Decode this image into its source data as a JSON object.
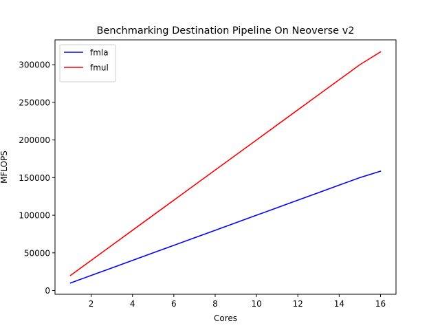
{
  "chart_data": {
    "type": "line",
    "title": "Benchmarking Destination Pipeline On Neoverse v2",
    "xlabel": "Cores",
    "ylabel": "MFLOPS",
    "xlim": [
      0.25,
      16.75
    ],
    "ylim": [
      -5000,
      333000
    ],
    "x_ticks": [
      2,
      4,
      6,
      8,
      10,
      12,
      14,
      16
    ],
    "x_tick_labels": [
      "2",
      "4",
      "6",
      "8",
      "10",
      "12",
      "14",
      "16"
    ],
    "y_ticks": [
      0,
      50000,
      100000,
      150000,
      200000,
      250000,
      300000
    ],
    "y_tick_labels": [
      "0",
      "50000",
      "100000",
      "150000",
      "200000",
      "250000",
      "300000"
    ],
    "grid": false,
    "legend_position": "top-left",
    "x": [
      1,
      2,
      3,
      4,
      5,
      6,
      7,
      8,
      9,
      10,
      11,
      12,
      13,
      14,
      15,
      16
    ],
    "series": [
      {
        "name": "fmla",
        "color": "#0000ff",
        "values": [
          10000,
          20000,
          30000,
          40000,
          50000,
          60000,
          70000,
          80000,
          90000,
          100000,
          110000,
          120000,
          130000,
          140000,
          150000,
          158500
        ]
      },
      {
        "name": "fmul",
        "color": "#ff0000",
        "values": [
          20000,
          40000,
          60000,
          80000,
          100000,
          120000,
          140000,
          160000,
          180000,
          200000,
          220000,
          240000,
          260000,
          280000,
          300000,
          317000
        ]
      }
    ]
  }
}
